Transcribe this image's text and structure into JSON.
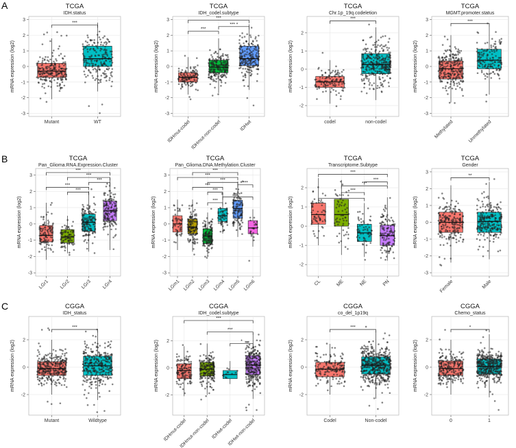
{
  "panel_letters": [
    "A",
    "B",
    "C"
  ],
  "colors": {
    "red": "#F8766D",
    "olive": "#B79F00",
    "green": "#00BA38",
    "teal": "#00BFC4",
    "blue": "#619CFF",
    "pink": "#F564E3"
  },
  "chart_data": [
    {
      "type": "boxplot",
      "panel": "A",
      "title": "TCGA",
      "subtitle": "IDH.status",
      "ylabel": "mRNA expression (log2)",
      "ylim": [
        -3.2,
        3.2
      ],
      "yticks": [
        -3,
        -2,
        -1,
        0,
        1,
        2,
        3
      ],
      "categories": [
        "Mutant",
        "WT"
      ],
      "fills": [
        "#F8766D",
        "#00BFC4"
      ],
      "boxes": [
        {
          "q1": -0.7,
          "median": -0.3,
          "q3": 0.2,
          "low": -2.1,
          "high": 1.8,
          "n": 220,
          "ymin": -2.3,
          "ymax": 2.2
        },
        {
          "q1": 0.0,
          "median": 0.5,
          "q3": 1.3,
          "low": -1.6,
          "high": 2.8,
          "n": 200,
          "ymin": -3.0,
          "ymax": 3.0
        }
      ],
      "sig": [
        {
          "a": 0,
          "b": 1,
          "label": "***",
          "y": 2.65
        }
      ]
    },
    {
      "type": "boxplot",
      "panel": "A",
      "title": "TCGA",
      "subtitle": "IDH_codel.subtype",
      "ylabel": "mRNA expression (log2)",
      "ylim": [
        -3.2,
        3.2
      ],
      "yticks": [
        -3,
        -2,
        -1,
        0,
        1,
        2,
        3
      ],
      "categories": [
        "IDHmut-codel",
        "IDHmut-non-codel",
        "IDHwt"
      ],
      "fills": [
        "#F8766D",
        "#00BA38",
        "#619CFF"
      ],
      "boxes": [
        {
          "q1": -1.0,
          "median": -0.7,
          "q3": -0.4,
          "low": -1.8,
          "high": 0.6,
          "n": 120,
          "ymin": -2.2,
          "ymax": 1.4
        },
        {
          "q1": -0.4,
          "median": -0.05,
          "q3": 0.4,
          "low": -1.7,
          "high": 1.8,
          "n": 200,
          "ymin": -2.0,
          "ymax": 2.3
        },
        {
          "q1": 0.05,
          "median": 0.5,
          "q3": 1.3,
          "low": -1.5,
          "high": 2.7,
          "n": 200,
          "ymin": -3.0,
          "ymax": 2.9
        }
      ],
      "sig": [
        {
          "a": 0,
          "b": 2,
          "label": "***",
          "y": 2.95
        },
        {
          "a": 0,
          "b": 1,
          "label": "***",
          "y": 2.25
        },
        {
          "a": 1,
          "b": 2,
          "label": "*** *",
          "y": 2.55
        }
      ]
    },
    {
      "type": "boxplot",
      "panel": "A",
      "title": "TCGA",
      "subtitle": "Chr.1p_19q.codeletion",
      "ylabel": "mRNA expression (log2)",
      "ylim": [
        -2.6,
        2.9
      ],
      "yticks": [
        -2,
        -1,
        0,
        1,
        2
      ],
      "categories": [
        "codel",
        "non-codel"
      ],
      "fills": [
        "#F8766D",
        "#00BFC4"
      ],
      "boxes": [
        {
          "q1": -1.0,
          "median": -0.7,
          "q3": -0.4,
          "low": -1.9,
          "high": 0.5,
          "n": 120,
          "ymin": -2.2,
          "ymax": 0.9
        },
        {
          "q1": -0.25,
          "median": 0.25,
          "q3": 0.85,
          "low": -1.7,
          "high": 2.3,
          "n": 320,
          "ymin": -2.6,
          "ymax": 2.6
        }
      ],
      "sig": [
        {
          "a": 0,
          "b": 1,
          "label": "***",
          "y": 2.65
        }
      ]
    },
    {
      "type": "boxplot",
      "panel": "A",
      "title": "TCGA",
      "subtitle": "MGMT.promoter.status",
      "ylabel": "mRNA expression (log2)",
      "ylim": [
        -3.2,
        3.2
      ],
      "yticks": [
        -3,
        -2,
        -1,
        0,
        1,
        2,
        3
      ],
      "categories": [
        "Methylated",
        "Unmethylated"
      ],
      "fills": [
        "#F8766D",
        "#00BFC4"
      ],
      "boxes": [
        {
          "q1": -0.8,
          "median": -0.15,
          "q3": 0.35,
          "low": -2.3,
          "high": 2.0,
          "n": 260,
          "ymin": -2.5,
          "ymax": 2.5
        },
        {
          "q1": -0.15,
          "median": 0.4,
          "q3": 1.1,
          "low": -1.8,
          "high": 2.6,
          "n": 150,
          "ymin": -3.0,
          "ymax": 2.9
        }
      ],
      "sig": [
        {
          "a": 0,
          "b": 1,
          "label": "***",
          "y": 2.75
        }
      ]
    },
    {
      "type": "boxplot",
      "panel": "B",
      "title": "TCGA",
      "subtitle": "Pan_Glioma.RNA.Expression.Cluster",
      "ylabel": "mRNA expression (log2)",
      "ylim": [
        -3.2,
        3.4
      ],
      "yticks": [
        -3,
        -2,
        -1,
        0,
        1,
        2,
        3
      ],
      "categories": [
        "LGr1",
        "LGr2",
        "LGr3",
        "LGr4"
      ],
      "fills": [
        "#F8766D",
        "#7CAE00",
        "#00BFC4",
        "#C77CFF"
      ],
      "boxes": [
        {
          "q1": -1.1,
          "median": -0.7,
          "q3": -0.1,
          "low": -2.2,
          "high": 1.3,
          "n": 110,
          "ymin": -2.6,
          "ymax": 1.4
        },
        {
          "q1": -1.15,
          "median": -0.8,
          "q3": -0.35,
          "low": -1.8,
          "high": 0.5,
          "n": 90,
          "ymin": -1.9,
          "ymax": 0.6
        },
        {
          "q1": -0.45,
          "median": 0.1,
          "q3": 0.6,
          "low": -1.7,
          "high": 2.0,
          "n": 150,
          "ymin": -1.8,
          "ymax": 2.2
        },
        {
          "q1": 0.2,
          "median": 0.8,
          "q3": 1.4,
          "low": -1.6,
          "high": 2.8,
          "n": 160,
          "ymin": -3.0,
          "ymax": 2.9
        }
      ],
      "sig": [
        {
          "a": 0,
          "b": 3,
          "label": "***",
          "y": 3.15
        },
        {
          "a": 1,
          "b": 3,
          "label": "***",
          "y": 2.85
        },
        {
          "a": 2,
          "b": 3,
          "label": "***",
          "y": 2.55
        },
        {
          "a": 0,
          "b": 2,
          "label": "***",
          "y": 2.25
        },
        {
          "a": 1,
          "b": 2,
          "label": "***",
          "y": 1.95
        }
      ]
    },
    {
      "type": "boxplot",
      "panel": "B",
      "title": "TCGA",
      "subtitle": "Pan_Glioma.DNA.Methylation.Cluster",
      "ylabel": "mRNA expression (log2)",
      "ylim": [
        -3.2,
        3.4
      ],
      "yticks": [
        -3,
        -2,
        -1,
        0,
        1,
        2,
        3
      ],
      "categories": [
        "LGm1",
        "LGm2",
        "LGm3",
        "LGm4",
        "LGm5",
        "LGm6"
      ],
      "fills": [
        "#F8766D",
        "#B79F00",
        "#00BA38",
        "#00BFC4",
        "#619CFF",
        "#F564E3"
      ],
      "boxes": [
        {
          "q1": -0.5,
          "median": 0.0,
          "q3": 0.5,
          "low": -1.6,
          "high": 1.5,
          "n": 50,
          "ymin": -2.3,
          "ymax": 1.7
        },
        {
          "q1": -0.6,
          "median": -0.2,
          "q3": 0.3,
          "low": -1.7,
          "high": 1.5,
          "n": 130,
          "ymin": -2.0,
          "ymax": 1.8
        },
        {
          "q1": -1.2,
          "median": -0.75,
          "q3": -0.3,
          "low": -1.9,
          "high": 0.7,
          "n": 130,
          "ymin": -2.4,
          "ymax": 1.0
        },
        {
          "q1": 0.15,
          "median": 0.5,
          "q3": 0.95,
          "low": -0.6,
          "high": 1.9,
          "n": 50,
          "ymin": -0.7,
          "ymax": 2.0
        },
        {
          "q1": 0.35,
          "median": 0.95,
          "q3": 1.45,
          "low": -0.8,
          "high": 2.6,
          "n": 110,
          "ymin": -1.0,
          "ymax": 2.8
        },
        {
          "q1": -0.6,
          "median": -0.25,
          "q3": 0.2,
          "low": -1.4,
          "high": 0.9,
          "n": 25,
          "ymin": -3.0,
          "ymax": 1.0
        }
      ],
      "sig": [
        {
          "a": 1,
          "b": 4,
          "label": "***",
          "y": 3.15
        },
        {
          "a": 0,
          "b": 4,
          "label": "***",
          "y": 2.85
        },
        {
          "a": 2,
          "b": 4,
          "label": "***",
          "y": 2.55
        },
        {
          "a": 1,
          "b": 3,
          "label": "***",
          "y": 2.25
        },
        {
          "a": 2,
          "b": 3,
          "label": "***",
          "y": 1.95
        },
        {
          "a": 3,
          "b": 5,
          "label": "***",
          "y": 1.65
        },
        {
          "a": 2,
          "b": 3,
          "label": "***",
          "y": 1.3
        },
        {
          "a": 4,
          "b": 5,
          "label": "***",
          "y": 2.4
        }
      ]
    },
    {
      "type": "boxplot",
      "panel": "B",
      "title": "TCGA",
      "subtitle": "Transcriptome.Subtype",
      "ylabel": "mRNA expression (log2)",
      "ylim": [
        -2.6,
        3.0
      ],
      "yticks": [
        -2,
        -1,
        0,
        1,
        2
      ],
      "categories": [
        "CL",
        "ME",
        "NE",
        "PN"
      ],
      "fills": [
        "#F8766D",
        "#7CAE00",
        "#00BFC4",
        "#C77CFF"
      ],
      "boxes": [
        {
          "q1": 0.1,
          "median": 0.6,
          "q3": 1.2,
          "low": -1.0,
          "high": 2.5,
          "n": 60,
          "ymin": -1.2,
          "ymax": 2.6
        },
        {
          "q1": 0.0,
          "median": 0.6,
          "q3": 1.4,
          "low": -1.5,
          "high": 2.4,
          "n": 60,
          "ymin": -1.6,
          "ymax": 2.5
        },
        {
          "q1": -0.8,
          "median": -0.35,
          "q3": 0.1,
          "low": -1.6,
          "high": 1.2,
          "n": 60,
          "ymin": -1.8,
          "ymax": 1.3
        },
        {
          "q1": -1.0,
          "median": -0.5,
          "q3": 0.05,
          "low": -1.8,
          "high": 1.5,
          "n": 130,
          "ymin": -2.0,
          "ymax": 1.7
        }
      ],
      "sig": [
        {
          "a": 0,
          "b": 3,
          "label": "***",
          "y": 2.7
        },
        {
          "a": 1,
          "b": 3,
          "label": "***",
          "y": 2.1
        },
        {
          "a": 1,
          "b": 2,
          "label": "***",
          "y": 1.75
        },
        {
          "a": 0,
          "b": 2,
          "label": "***",
          "y": 1.45
        },
        {
          "a": 2,
          "b": 3,
          "label": "***",
          "y": 2.3
        }
      ]
    },
    {
      "type": "boxplot",
      "panel": "B",
      "title": "TCGA",
      "subtitle": "Gender",
      "ylabel": "mRNA expression (log2)",
      "ylim": [
        -3.2,
        3.2
      ],
      "yticks": [
        -3,
        -2,
        -1,
        0,
        1,
        2,
        3
      ],
      "categories": [
        "Female",
        "Male"
      ],
      "fills": [
        "#F8766D",
        "#00BFC4"
      ],
      "boxes": [
        {
          "q1": -0.6,
          "median": 0.0,
          "q3": 0.6,
          "low": -2.4,
          "high": 2.2,
          "n": 200,
          "ymin": -2.6,
          "ymax": 2.9
        },
        {
          "q1": -0.6,
          "median": 0.05,
          "q3": 0.6,
          "low": -2.2,
          "high": 2.4,
          "n": 240,
          "ymin": -2.4,
          "ymax": 2.6
        }
      ],
      "sig": [
        {
          "a": 0,
          "b": 1,
          "label": "**",
          "y": 2.65
        }
      ]
    },
    {
      "type": "boxplot",
      "panel": "C",
      "title": "CGGA",
      "subtitle": "IDH_status",
      "ylabel": "mRNA expression (log2)",
      "ylim": [
        -3.5,
        3.7
      ],
      "yticks": [
        -2,
        0,
        2
      ],
      "categories": [
        "Mutant",
        "Wildtype"
      ],
      "fills": [
        "#F8766D",
        "#00BFC4"
      ],
      "boxes": [
        {
          "q1": -0.6,
          "median": -0.1,
          "q3": 0.4,
          "low": -2.0,
          "high": 2.0,
          "n": 320,
          "ymin": -3.0,
          "ymax": 3.0
        },
        {
          "q1": -0.6,
          "median": 0.1,
          "q3": 0.8,
          "low": -2.4,
          "high": 2.6,
          "n": 300,
          "ymin": -3.3,
          "ymax": 3.2
        }
      ],
      "sig": [
        {
          "a": 0,
          "b": 1,
          "label": "***",
          "y": 2.75
        }
      ]
    },
    {
      "type": "boxplot",
      "panel": "C",
      "title": "CGGA",
      "subtitle": "IDH_codel.subtype",
      "ylabel": "mRNA expression (log2)",
      "ylim": [
        -3.5,
        3.8
      ],
      "yticks": [
        -2,
        0,
        2
      ],
      "categories": [
        "IDHmut-codel",
        "IDHmut-non-codel",
        "IDHwt-codel",
        "IDHwt-non-codel"
      ],
      "fills": [
        "#F8766D",
        "#7CAE00",
        "#00BFC4",
        "#C77CFF"
      ],
      "boxes": [
        {
          "q1": -0.8,
          "median": -0.2,
          "q3": 0.3,
          "low": -2.1,
          "high": 1.6,
          "n": 120,
          "ymin": -2.5,
          "ymax": 2.2
        },
        {
          "q1": -0.6,
          "median": -0.1,
          "q3": 0.4,
          "low": -2.0,
          "high": 1.8,
          "n": 190,
          "ymin": -2.8,
          "ymax": 2.6
        },
        {
          "q1": -0.8,
          "median": -0.5,
          "q3": -0.2,
          "low": -1.2,
          "high": 0.5,
          "n": 12,
          "ymin": -1.3,
          "ymax": 0.6
        },
        {
          "q1": -0.5,
          "median": 0.2,
          "q3": 0.9,
          "low": -2.3,
          "high": 2.6,
          "n": 280,
          "ymin": -3.2,
          "ymax": 3.2
        }
      ],
      "sig": [
        {
          "a": 0,
          "b": 3,
          "label": "***",
          "y": 3.5
        },
        {
          "a": 1,
          "b": 3,
          "label": "***",
          "y": 2.65
        },
        {
          "a": 2,
          "b": 3,
          "label": "*",
          "y": 1.8
        }
      ]
    },
    {
      "type": "boxplot",
      "panel": "C",
      "title": "CGGA",
      "subtitle": "co_del_1p19q",
      "ylabel": "mRNA expression (log2)",
      "ylim": [
        -3.5,
        3.7
      ],
      "yticks": [
        -2,
        0,
        2
      ],
      "categories": [
        "Codel",
        "Non-codel"
      ],
      "fills": [
        "#F8766D",
        "#00BFC4"
      ],
      "boxes": [
        {
          "q1": -0.7,
          "median": -0.15,
          "q3": 0.35,
          "low": -2.0,
          "high": 1.7,
          "n": 160,
          "ymin": -2.6,
          "ymax": 2.6
        },
        {
          "q1": -0.5,
          "median": 0.15,
          "q3": 0.75,
          "low": -2.3,
          "high": 2.6,
          "n": 460,
          "ymin": -3.2,
          "ymax": 3.3
        }
      ],
      "sig": [
        {
          "a": 0,
          "b": 1,
          "label": "***",
          "y": 2.75
        }
      ]
    },
    {
      "type": "boxplot",
      "panel": "C",
      "title": "CGGA",
      "subtitle": "Chemo_status",
      "ylabel": "mRNA expression (log2)",
      "ylim": [
        -3.5,
        3.7
      ],
      "yticks": [
        -2,
        0,
        2
      ],
      "categories": [
        "0",
        "1"
      ],
      "fills": [
        "#F8766D",
        "#00BFC4"
      ],
      "boxes": [
        {
          "q1": -0.6,
          "median": -0.1,
          "q3": 0.45,
          "low": -2.0,
          "high": 2.0,
          "n": 230,
          "ymin": -2.6,
          "ymax": 2.9
        },
        {
          "q1": -0.5,
          "median": 0.05,
          "q3": 0.6,
          "low": -2.2,
          "high": 2.4,
          "n": 400,
          "ymin": -3.2,
          "ymax": 3.3
        }
      ],
      "sig": [
        {
          "a": 0,
          "b": 1,
          "label": "*",
          "y": 2.75
        }
      ]
    }
  ]
}
